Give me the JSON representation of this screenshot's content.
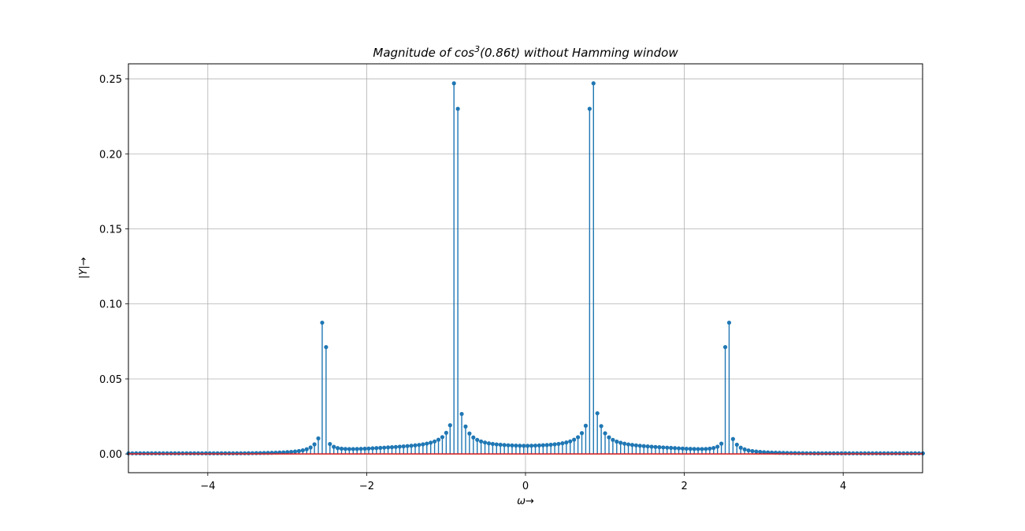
{
  "chart_data": {
    "type": "stem",
    "title_main": "Magnitude of cos",
    "title_sup": "3",
    "title_tail": "(0.86t) without Hamming window",
    "xlabel": "ω→",
    "ylabel": "|Y|→",
    "xlim": [
      -5,
      5
    ],
    "ylim": [
      -0.0125,
      0.26
    ],
    "xticks": [
      -4,
      -2,
      0,
      2,
      4
    ],
    "xtick_labels": [
      "−4",
      "−2",
      "0",
      "2",
      "4"
    ],
    "yticks": [
      0.0,
      0.05,
      0.1,
      0.15,
      0.2,
      0.25
    ],
    "ytick_labels": [
      "0.00",
      "0.05",
      "0.10",
      "0.15",
      "0.20",
      "0.25"
    ],
    "grid": true,
    "stem_color": "#1f77b4",
    "baseline_color": "#d62728",
    "series": [
      {
        "x_start": -5.0,
        "x_step": 0.0488,
        "count": 206,
        "peaks": [
          {
            "x": -2.58,
            "y": 0.0875
          },
          {
            "x": -2.53,
            "y": 0.0712
          },
          {
            "x": -0.88,
            "y": 0.247
          },
          {
            "x": -0.83,
            "y": 0.23
          },
          {
            "x": 0.83,
            "y": 0.23
          },
          {
            "x": 0.88,
            "y": 0.247
          },
          {
            "x": 2.53,
            "y": 0.0712
          },
          {
            "x": 2.58,
            "y": 0.0875
          }
        ]
      }
    ]
  }
}
